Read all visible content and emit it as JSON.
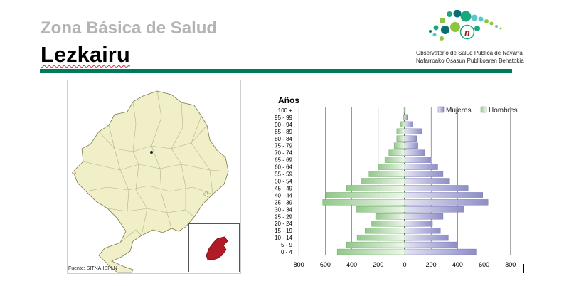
{
  "header": {
    "zone_label": "Zona Básica de Salud",
    "zone_name": "Lezkairu",
    "rule_color": "#00785a"
  },
  "logo": {
    "icon": "observatory-dots-logo",
    "letter": "n",
    "line1": "Observatorio de Salud Pública de Navarra",
    "line2": "Nafarroako Osasun Publikoaren Behatokia",
    "dot_colors": [
      "#1aa77f",
      "#0a6e72",
      "#8cc63f",
      "#5cc6c8",
      "#8b1a1a"
    ]
  },
  "map": {
    "source": "Fuente: SITNA-ISPLN",
    "region_fill": "#f0efc7",
    "highlight_fill": "#b01b27"
  },
  "chart_data": {
    "type": "bar",
    "orientation": "horizontal",
    "layout": "population-pyramid",
    "ylabel": "Años",
    "categories": [
      "0 - 4",
      "5 - 9",
      "10 - 14",
      "15 - 19",
      "20 - 24",
      "25 - 29",
      "30 - 34",
      "35 - 39",
      "40 - 44",
      "45 - 49",
      "50 - 54",
      "55 - 59",
      "60 - 64",
      "65 - 69",
      "70 - 74",
      "75 - 79",
      "80 - 84",
      "85 - 89",
      "90 - 94",
      "95 - 99",
      "100 +"
    ],
    "series": [
      {
        "name": "Mujeres",
        "side": "right",
        "color": "#9e9ed4",
        "values": [
          540,
          400,
          330,
          270,
          210,
          290,
          450,
          630,
          590,
          480,
          340,
          290,
          250,
          200,
          150,
          100,
          90,
          130,
          60,
          20,
          5
        ]
      },
      {
        "name": "Hombres",
        "side": "left",
        "color": "#b6dcb0",
        "values": [
          510,
          440,
          360,
          300,
          250,
          220,
          370,
          620,
          590,
          440,
          330,
          270,
          200,
          150,
          120,
          80,
          60,
          60,
          30,
          10,
          5
        ]
      }
    ],
    "xticks": [
      800,
      600,
      400,
      200,
      0,
      200,
      400,
      600,
      800
    ],
    "xlim": [
      -800,
      800
    ],
    "grid": true,
    "legend": "top-right"
  }
}
